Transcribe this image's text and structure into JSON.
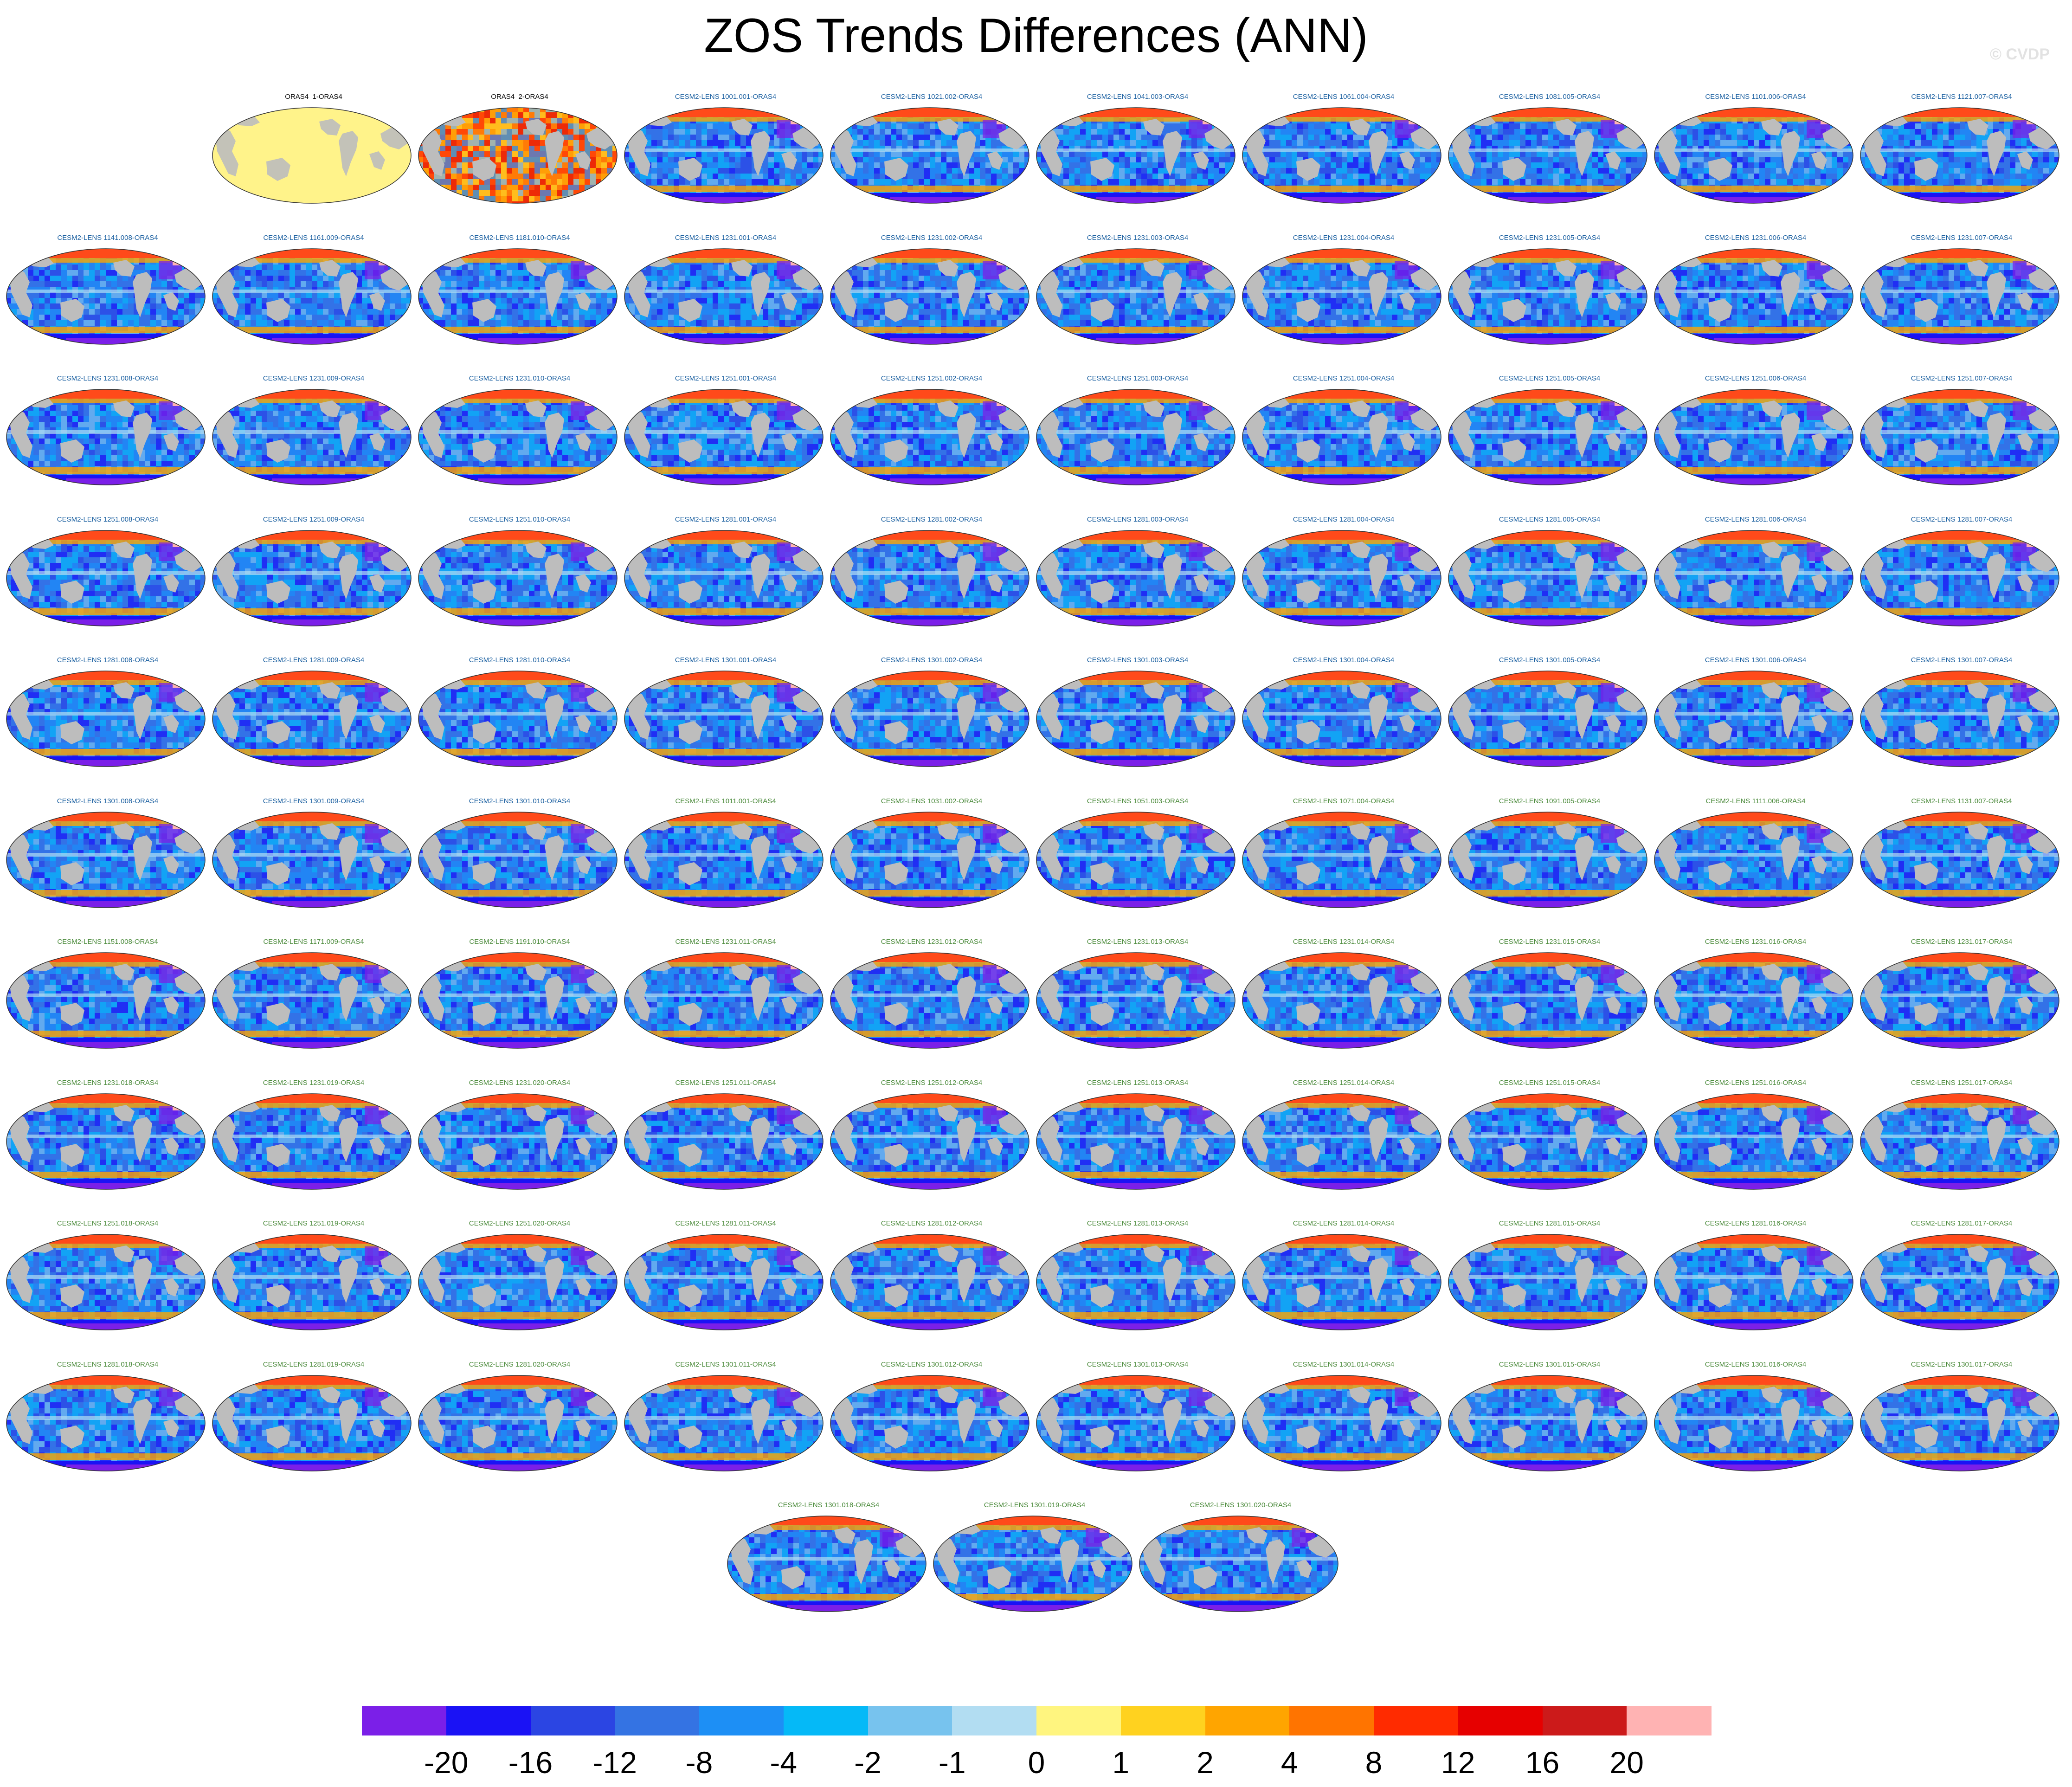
{
  "title": "ZOS Trends Differences (ANN)",
  "copyright": "© CVDP",
  "panels": [
    {
      "title": "ORAS4_1-ORAS4",
      "color": "#000000",
      "type": "obs1"
    },
    {
      "title": "ORAS4_2-ORAS4",
      "color": "#000000",
      "type": "obs2"
    },
    {
      "title": "CESM2-LENS 1001.001-ORAS4",
      "color": "#1a5fa0",
      "type": "model"
    },
    {
      "title": "CESM2-LENS 1021.002-ORAS4",
      "color": "#1a5fa0",
      "type": "model"
    },
    {
      "title": "CESM2-LENS 1041.003-ORAS4",
      "color": "#1a5fa0",
      "type": "model"
    },
    {
      "title": "CESM2-LENS 1061.004-ORAS4",
      "color": "#1a5fa0",
      "type": "model"
    },
    {
      "title": "CESM2-LENS 1081.005-ORAS4",
      "color": "#1a5fa0",
      "type": "model"
    },
    {
      "title": "CESM2-LENS 1101.006-ORAS4",
      "color": "#1a5fa0",
      "type": "model"
    },
    {
      "title": "CESM2-LENS 1121.007-ORAS4",
      "color": "#1a5fa0",
      "type": "model"
    },
    {
      "title": "CESM2-LENS 1141.008-ORAS4",
      "color": "#1a5fa0",
      "type": "model"
    },
    {
      "title": "CESM2-LENS 1161.009-ORAS4",
      "color": "#1a5fa0",
      "type": "model"
    },
    {
      "title": "CESM2-LENS 1181.010-ORAS4",
      "color": "#1a5fa0",
      "type": "model"
    },
    {
      "title": "CESM2-LENS 1231.001-ORAS4",
      "color": "#1a5fa0",
      "type": "model"
    },
    {
      "title": "CESM2-LENS 1231.002-ORAS4",
      "color": "#1a5fa0",
      "type": "model"
    },
    {
      "title": "CESM2-LENS 1231.003-ORAS4",
      "color": "#1a5fa0",
      "type": "model"
    },
    {
      "title": "CESM2-LENS 1231.004-ORAS4",
      "color": "#1a5fa0",
      "type": "model"
    },
    {
      "title": "CESM2-LENS 1231.005-ORAS4",
      "color": "#1a5fa0",
      "type": "model"
    },
    {
      "title": "CESM2-LENS 1231.006-ORAS4",
      "color": "#1a5fa0",
      "type": "model"
    },
    {
      "title": "CESM2-LENS 1231.007-ORAS4",
      "color": "#1a5fa0",
      "type": "model"
    },
    {
      "title": "CESM2-LENS 1231.008-ORAS4",
      "color": "#1a5fa0",
      "type": "model"
    },
    {
      "title": "CESM2-LENS 1231.009-ORAS4",
      "color": "#1a5fa0",
      "type": "model"
    },
    {
      "title": "CESM2-LENS 1231.010-ORAS4",
      "color": "#1a5fa0",
      "type": "model"
    },
    {
      "title": "CESM2-LENS 1251.001-ORAS4",
      "color": "#1a5fa0",
      "type": "model"
    },
    {
      "title": "CESM2-LENS 1251.002-ORAS4",
      "color": "#1a5fa0",
      "type": "model"
    },
    {
      "title": "CESM2-LENS 1251.003-ORAS4",
      "color": "#1a5fa0",
      "type": "model"
    },
    {
      "title": "CESM2-LENS 1251.004-ORAS4",
      "color": "#1a5fa0",
      "type": "model"
    },
    {
      "title": "CESM2-LENS 1251.005-ORAS4",
      "color": "#1a5fa0",
      "type": "model"
    },
    {
      "title": "CESM2-LENS 1251.006-ORAS4",
      "color": "#1a5fa0",
      "type": "model"
    },
    {
      "title": "CESM2-LENS 1251.007-ORAS4",
      "color": "#1a5fa0",
      "type": "model"
    },
    {
      "title": "CESM2-LENS 1251.008-ORAS4",
      "color": "#1a5fa0",
      "type": "model"
    },
    {
      "title": "CESM2-LENS 1251.009-ORAS4",
      "color": "#1a5fa0",
      "type": "model"
    },
    {
      "title": "CESM2-LENS 1251.010-ORAS4",
      "color": "#1a5fa0",
      "type": "model"
    },
    {
      "title": "CESM2-LENS 1281.001-ORAS4",
      "color": "#1a5fa0",
      "type": "model"
    },
    {
      "title": "CESM2-LENS 1281.002-ORAS4",
      "color": "#1a5fa0",
      "type": "model"
    },
    {
      "title": "CESM2-LENS 1281.003-ORAS4",
      "color": "#1a5fa0",
      "type": "model"
    },
    {
      "title": "CESM2-LENS 1281.004-ORAS4",
      "color": "#1a5fa0",
      "type": "model"
    },
    {
      "title": "CESM2-LENS 1281.005-ORAS4",
      "color": "#1a5fa0",
      "type": "model"
    },
    {
      "title": "CESM2-LENS 1281.006-ORAS4",
      "color": "#1a5fa0",
      "type": "model"
    },
    {
      "title": "CESM2-LENS 1281.007-ORAS4",
      "color": "#1a5fa0",
      "type": "model"
    },
    {
      "title": "CESM2-LENS 1281.008-ORAS4",
      "color": "#1a5fa0",
      "type": "model"
    },
    {
      "title": "CESM2-LENS 1281.009-ORAS4",
      "color": "#1a5fa0",
      "type": "model"
    },
    {
      "title": "CESM2-LENS 1281.010-ORAS4",
      "color": "#1a5fa0",
      "type": "model"
    },
    {
      "title": "CESM2-LENS 1301.001-ORAS4",
      "color": "#1a5fa0",
      "type": "model"
    },
    {
      "title": "CESM2-LENS 1301.002-ORAS4",
      "color": "#1a5fa0",
      "type": "model"
    },
    {
      "title": "CESM2-LENS 1301.003-ORAS4",
      "color": "#1a5fa0",
      "type": "model"
    },
    {
      "title": "CESM2-LENS 1301.004-ORAS4",
      "color": "#1a5fa0",
      "type": "model"
    },
    {
      "title": "CESM2-LENS 1301.005-ORAS4",
      "color": "#1a5fa0",
      "type": "model"
    },
    {
      "title": "CESM2-LENS 1301.006-ORAS4",
      "color": "#1a5fa0",
      "type": "model"
    },
    {
      "title": "CESM2-LENS 1301.007-ORAS4",
      "color": "#1a5fa0",
      "type": "model"
    },
    {
      "title": "CESM2-LENS 1301.008-ORAS4",
      "color": "#1a5fa0",
      "type": "model"
    },
    {
      "title": "CESM2-LENS 1301.009-ORAS4",
      "color": "#1a5fa0",
      "type": "model"
    },
    {
      "title": "CESM2-LENS 1301.010-ORAS4",
      "color": "#1a5fa0",
      "type": "model"
    },
    {
      "title": "CESM2-LENS 1011.001-ORAS4",
      "color": "#4a8a3a",
      "type": "model"
    },
    {
      "title": "CESM2-LENS 1031.002-ORAS4",
      "color": "#4a8a3a",
      "type": "model"
    },
    {
      "title": "CESM2-LENS 1051.003-ORAS4",
      "color": "#4a8a3a",
      "type": "model"
    },
    {
      "title": "CESM2-LENS 1071.004-ORAS4",
      "color": "#4a8a3a",
      "type": "model"
    },
    {
      "title": "CESM2-LENS 1091.005-ORAS4",
      "color": "#4a8a3a",
      "type": "model"
    },
    {
      "title": "CESM2-LENS 1111.006-ORAS4",
      "color": "#4a8a3a",
      "type": "model"
    },
    {
      "title": "CESM2-LENS 1131.007-ORAS4",
      "color": "#4a8a3a",
      "type": "model"
    },
    {
      "title": "CESM2-LENS 1151.008-ORAS4",
      "color": "#4a8a3a",
      "type": "model"
    },
    {
      "title": "CESM2-LENS 1171.009-ORAS4",
      "color": "#4a8a3a",
      "type": "model"
    },
    {
      "title": "CESM2-LENS 1191.010-ORAS4",
      "color": "#4a8a3a",
      "type": "model"
    },
    {
      "title": "CESM2-LENS 1231.011-ORAS4",
      "color": "#4a8a3a",
      "type": "model"
    },
    {
      "title": "CESM2-LENS 1231.012-ORAS4",
      "color": "#4a8a3a",
      "type": "model"
    },
    {
      "title": "CESM2-LENS 1231.013-ORAS4",
      "color": "#4a8a3a",
      "type": "model"
    },
    {
      "title": "CESM2-LENS 1231.014-ORAS4",
      "color": "#4a8a3a",
      "type": "model"
    },
    {
      "title": "CESM2-LENS 1231.015-ORAS4",
      "color": "#4a8a3a",
      "type": "model"
    },
    {
      "title": "CESM2-LENS 1231.016-ORAS4",
      "color": "#4a8a3a",
      "type": "model"
    },
    {
      "title": "CESM2-LENS 1231.017-ORAS4",
      "color": "#4a8a3a",
      "type": "model"
    },
    {
      "title": "CESM2-LENS 1231.018-ORAS4",
      "color": "#4a8a3a",
      "type": "model"
    },
    {
      "title": "CESM2-LENS 1231.019-ORAS4",
      "color": "#4a8a3a",
      "type": "model"
    },
    {
      "title": "CESM2-LENS 1231.020-ORAS4",
      "color": "#4a8a3a",
      "type": "model"
    },
    {
      "title": "CESM2-LENS 1251.011-ORAS4",
      "color": "#4a8a3a",
      "type": "model"
    },
    {
      "title": "CESM2-LENS 1251.012-ORAS4",
      "color": "#4a8a3a",
      "type": "model"
    },
    {
      "title": "CESM2-LENS 1251.013-ORAS4",
      "color": "#4a8a3a",
      "type": "model"
    },
    {
      "title": "CESM2-LENS 1251.014-ORAS4",
      "color": "#4a8a3a",
      "type": "model"
    },
    {
      "title": "CESM2-LENS 1251.015-ORAS4",
      "color": "#4a8a3a",
      "type": "model"
    },
    {
      "title": "CESM2-LENS 1251.016-ORAS4",
      "color": "#4a8a3a",
      "type": "model"
    },
    {
      "title": "CESM2-LENS 1251.017-ORAS4",
      "color": "#4a8a3a",
      "type": "model"
    },
    {
      "title": "CESM2-LENS 1251.018-ORAS4",
      "color": "#4a8a3a",
      "type": "model"
    },
    {
      "title": "CESM2-LENS 1251.019-ORAS4",
      "color": "#4a8a3a",
      "type": "model"
    },
    {
      "title": "CESM2-LENS 1251.020-ORAS4",
      "color": "#4a8a3a",
      "type": "model"
    },
    {
      "title": "CESM2-LENS 1281.011-ORAS4",
      "color": "#4a8a3a",
      "type": "model"
    },
    {
      "title": "CESM2-LENS 1281.012-ORAS4",
      "color": "#4a8a3a",
      "type": "model"
    },
    {
      "title": "CESM2-LENS 1281.013-ORAS4",
      "color": "#4a8a3a",
      "type": "model"
    },
    {
      "title": "CESM2-LENS 1281.014-ORAS4",
      "color": "#4a8a3a",
      "type": "model"
    },
    {
      "title": "CESM2-LENS 1281.015-ORAS4",
      "color": "#4a8a3a",
      "type": "model"
    },
    {
      "title": "CESM2-LENS 1281.016-ORAS4",
      "color": "#4a8a3a",
      "type": "model"
    },
    {
      "title": "CESM2-LENS 1281.017-ORAS4",
      "color": "#4a8a3a",
      "type": "model"
    },
    {
      "title": "CESM2-LENS 1281.018-ORAS4",
      "color": "#4a8a3a",
      "type": "model"
    },
    {
      "title": "CESM2-LENS 1281.019-ORAS4",
      "color": "#4a8a3a",
      "type": "model"
    },
    {
      "title": "CESM2-LENS 1281.020-ORAS4",
      "color": "#4a8a3a",
      "type": "model"
    },
    {
      "title": "CESM2-LENS 1301.011-ORAS4",
      "color": "#4a8a3a",
      "type": "model"
    },
    {
      "title": "CESM2-LENS 1301.012-ORAS4",
      "color": "#4a8a3a",
      "type": "model"
    },
    {
      "title": "CESM2-LENS 1301.013-ORAS4",
      "color": "#4a8a3a",
      "type": "model"
    },
    {
      "title": "CESM2-LENS 1301.014-ORAS4",
      "color": "#4a8a3a",
      "type": "model"
    },
    {
      "title": "CESM2-LENS 1301.015-ORAS4",
      "color": "#4a8a3a",
      "type": "model"
    },
    {
      "title": "CESM2-LENS 1301.016-ORAS4",
      "color": "#4a8a3a",
      "type": "model"
    },
    {
      "title": "CESM2-LENS 1301.017-ORAS4",
      "color": "#4a8a3a",
      "type": "model"
    },
    {
      "title": "CESM2-LENS 1301.018-ORAS4",
      "color": "#4a8a3a",
      "type": "model"
    },
    {
      "title": "CESM2-LENS 1301.019-ORAS4",
      "color": "#4a8a3a",
      "type": "model"
    },
    {
      "title": "CESM2-LENS 1301.020-ORAS4",
      "color": "#4a8a3a",
      "type": "model"
    }
  ],
  "colorbar": {
    "colors": [
      "#7b1fe8",
      "#1a12f5",
      "#2b45e3",
      "#3473e3",
      "#1d8ff5",
      "#05b9f7",
      "#77c3ee",
      "#b2ddf2",
      "#fff57f",
      "#ffd21f",
      "#ffa500",
      "#ff7400",
      "#ff2b00",
      "#e60000",
      "#cc1a1a",
      "#ffb3b3"
    ],
    "labels": [
      "-20",
      "-16",
      "-12",
      "-8",
      "-4",
      "-2",
      "-1",
      "0",
      "1",
      "2",
      "4",
      "8",
      "12",
      "16",
      "20"
    ]
  }
}
